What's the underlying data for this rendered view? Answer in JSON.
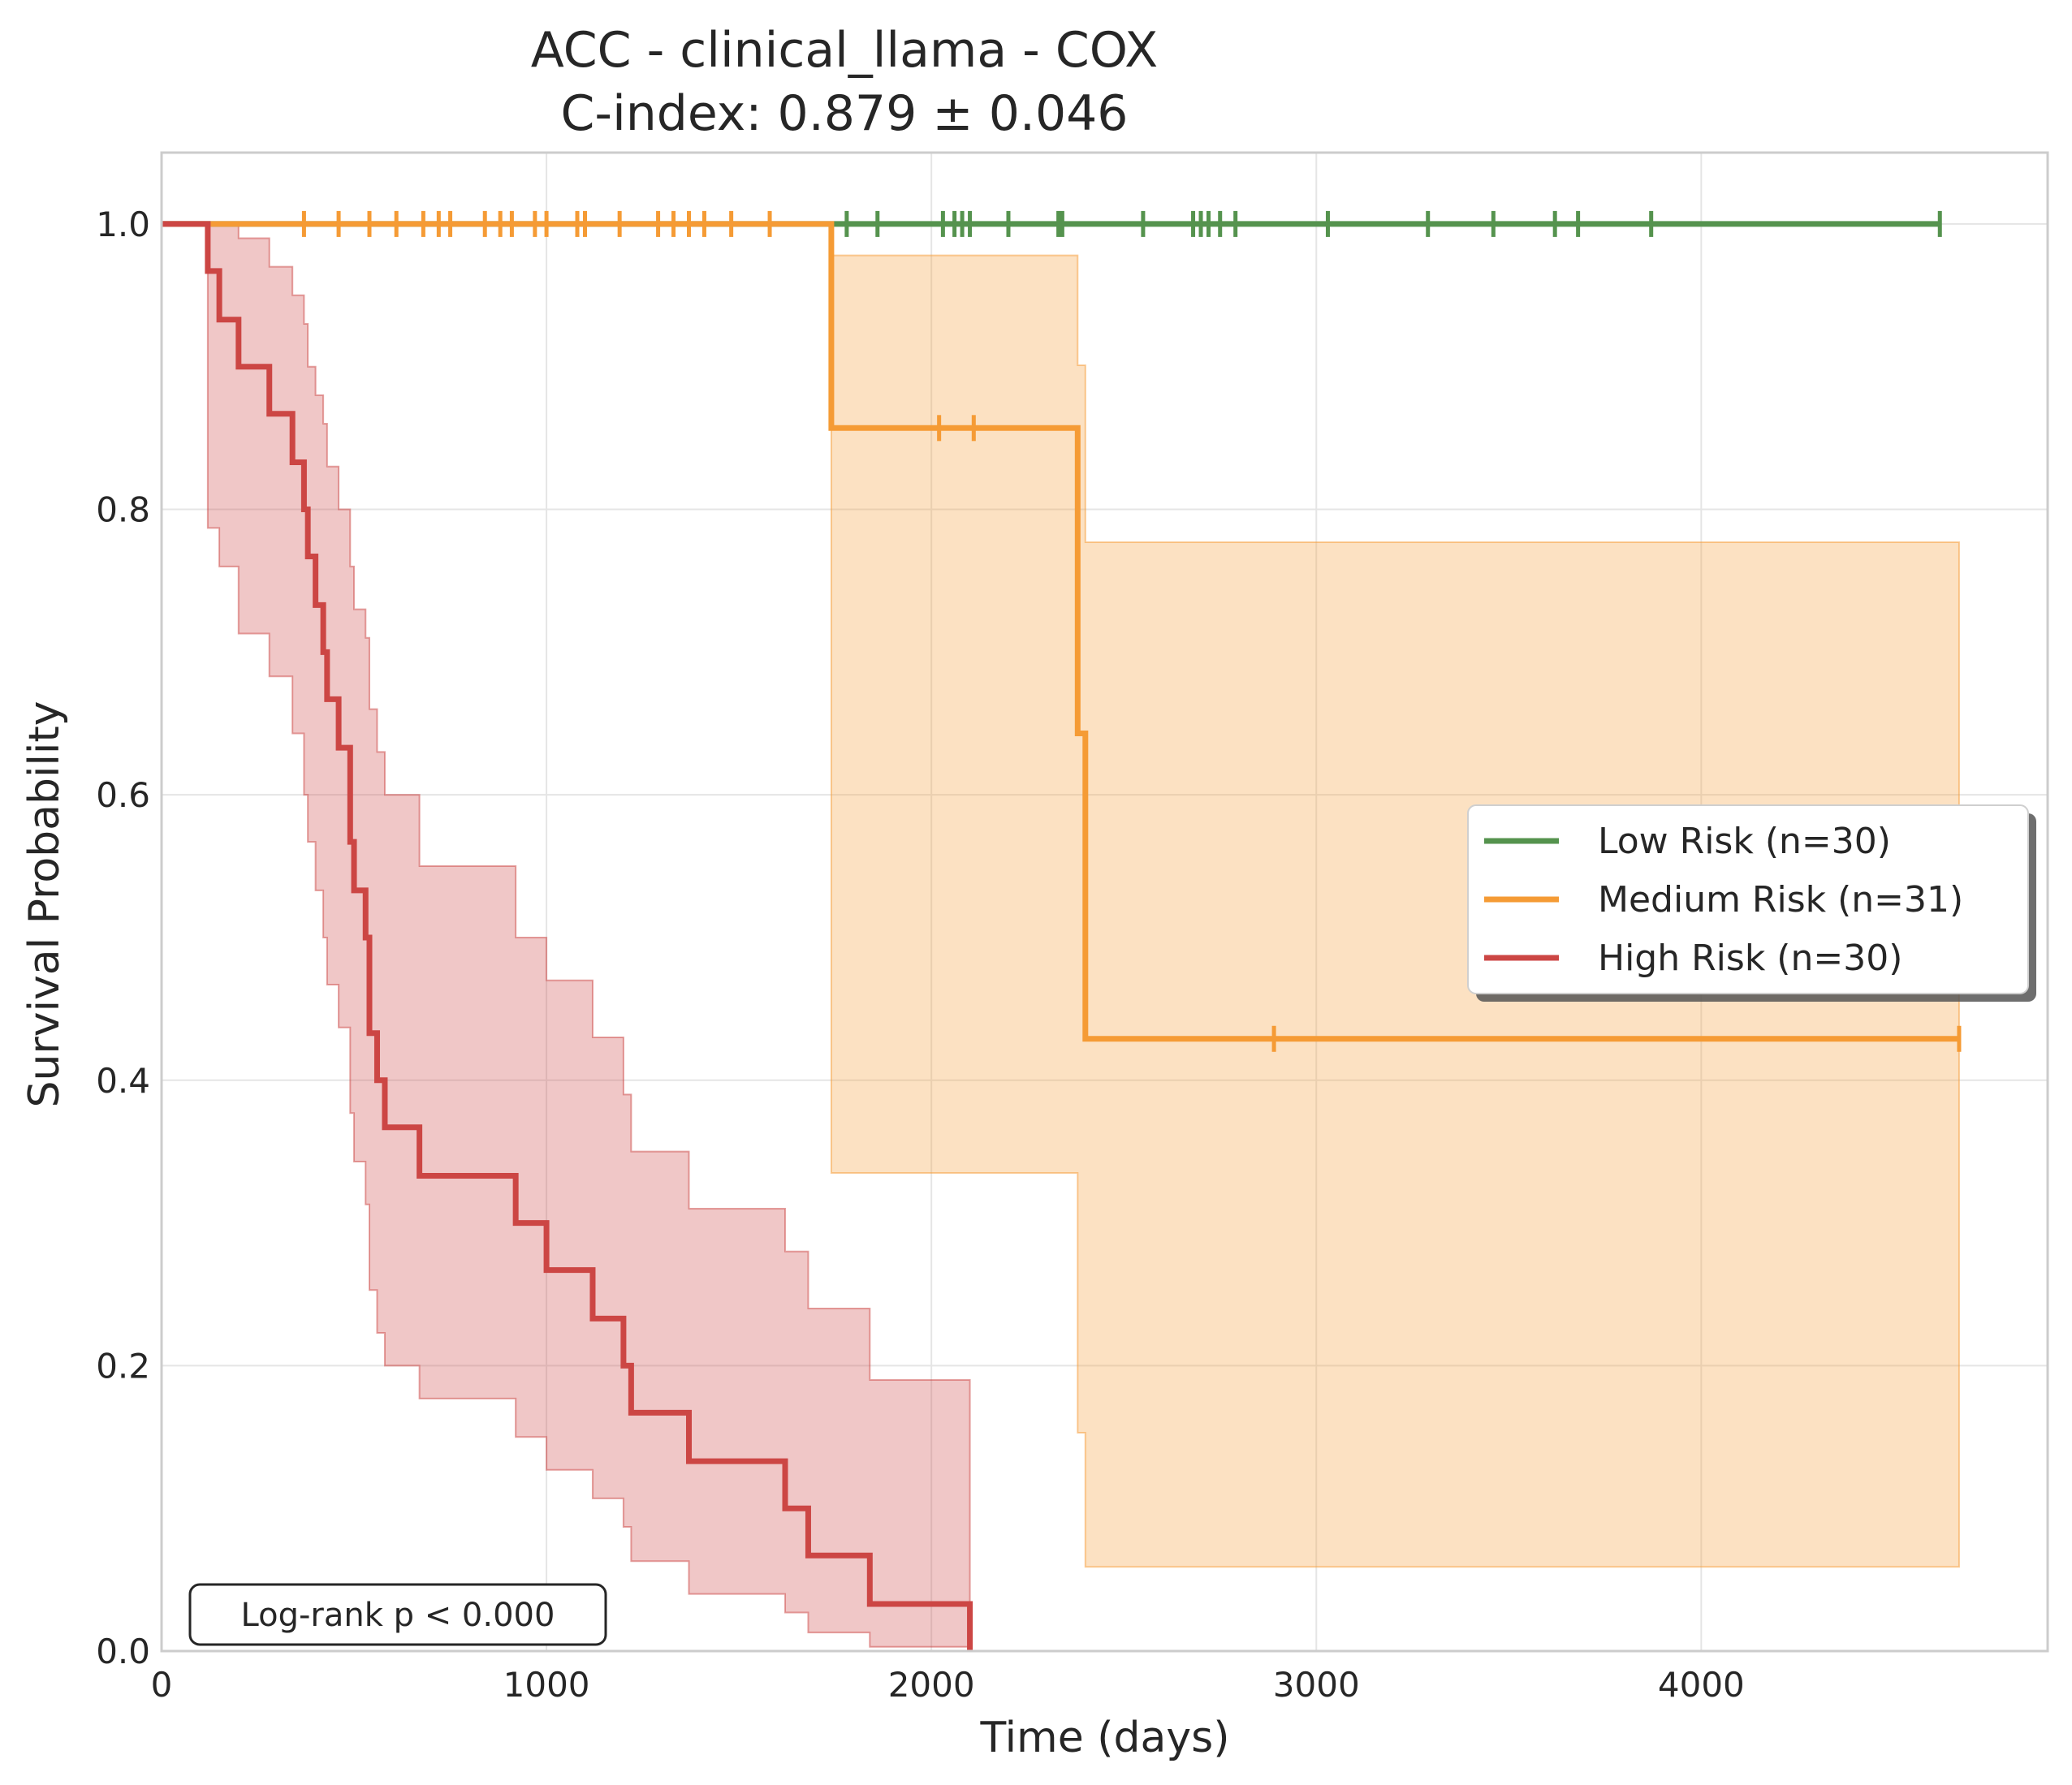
{
  "chart_data": {
    "type": "line",
    "title": "ACC - clinical_llama - COX",
    "subtitle": "C-index: 0.879 ± 0.046",
    "xlabel": "Time (days)",
    "ylabel": "Survival Probability",
    "xlim": [
      0,
      4900
    ],
    "ylim": [
      0,
      1.05
    ],
    "x_ticks": [
      0,
      1000,
      2000,
      3000,
      4000
    ],
    "x_tick_labels": [
      "0",
      "1000",
      "2000",
      "3000",
      "4000"
    ],
    "y_ticks": [
      0.0,
      0.2,
      0.4,
      0.6,
      0.8,
      1.0
    ],
    "y_tick_labels": [
      "0.0",
      "0.2",
      "0.4",
      "0.6",
      "0.8",
      "1.0"
    ],
    "grid": true,
    "legend_position": "center-right",
    "annotation": "Log-rank p < 0.000",
    "series": [
      {
        "name": "Low Risk (n=30)",
        "color": "#55934e",
        "steps": [
          [
            0,
            1.0
          ],
          [
            4620,
            1.0
          ]
        ],
        "ci_upper": [],
        "ci_lower": [],
        "censor_times": [
          1780,
          1860,
          2030,
          2060,
          2080,
          2100,
          2200,
          2330,
          2340,
          2550,
          2680,
          2700,
          2720,
          2750,
          2790,
          3030,
          3290,
          3460,
          3620,
          3680,
          3870,
          4620
        ]
      },
      {
        "name": "Medium Risk (n=31)",
        "color": "#f59b35",
        "steps": [
          [
            0,
            1.0
          ],
          [
            1740,
            0.857
          ],
          [
            2380,
            0.643
          ],
          [
            2400,
            0.429
          ],
          [
            4670,
            0.429
          ]
        ],
        "ci_upper": [
          [
            1740,
            0.978
          ],
          [
            2380,
            0.901
          ],
          [
            2400,
            0.777
          ],
          [
            4670,
            0.777
          ]
        ],
        "ci_lower": [
          [
            1740,
            0.335
          ],
          [
            2380,
            0.153
          ],
          [
            2400,
            0.059
          ],
          [
            4670,
            0.059
          ]
        ],
        "censor_times": [
          370,
          460,
          540,
          610,
          680,
          720,
          750,
          840,
          880,
          910,
          970,
          1000,
          1080,
          1100,
          1190,
          1290,
          1330,
          1370,
          1410,
          1480,
          1580,
          2020,
          2110,
          2890,
          4670
        ]
      },
      {
        "name": "High Risk (n=30)",
        "color": "#cc4644",
        "steps": [
          [
            0,
            1.0
          ],
          [
            120,
            0.967
          ],
          [
            150,
            0.933
          ],
          [
            200,
            0.9
          ],
          [
            280,
            0.867
          ],
          [
            340,
            0.833
          ],
          [
            370,
            0.8
          ],
          [
            380,
            0.767
          ],
          [
            400,
            0.733
          ],
          [
            420,
            0.7
          ],
          [
            430,
            0.667
          ],
          [
            460,
            0.633
          ],
          [
            490,
            0.567
          ],
          [
            500,
            0.533
          ],
          [
            530,
            0.5
          ],
          [
            540,
            0.433
          ],
          [
            560,
            0.4
          ],
          [
            580,
            0.367
          ],
          [
            670,
            0.333
          ],
          [
            920,
            0.3
          ],
          [
            1000,
            0.267
          ],
          [
            1120,
            0.233
          ],
          [
            1200,
            0.2
          ],
          [
            1220,
            0.167
          ],
          [
            1370,
            0.133
          ],
          [
            1620,
            0.1
          ],
          [
            1680,
            0.067
          ],
          [
            1840,
            0.033
          ],
          [
            2100,
            0.0
          ]
        ],
        "ci_upper": [
          [
            0,
            1.0
          ],
          [
            120,
            1.0
          ],
          [
            150,
            1.0
          ],
          [
            200,
            0.99
          ],
          [
            280,
            0.97
          ],
          [
            340,
            0.95
          ],
          [
            370,
            0.93
          ],
          [
            380,
            0.9
          ],
          [
            400,
            0.88
          ],
          [
            420,
            0.86
          ],
          [
            430,
            0.83
          ],
          [
            460,
            0.8
          ],
          [
            490,
            0.76
          ],
          [
            500,
            0.73
          ],
          [
            530,
            0.71
          ],
          [
            540,
            0.66
          ],
          [
            560,
            0.63
          ],
          [
            580,
            0.6
          ],
          [
            670,
            0.55
          ],
          [
            920,
            0.5
          ],
          [
            1000,
            0.47
          ],
          [
            1120,
            0.43
          ],
          [
            1200,
            0.39
          ],
          [
            1220,
            0.35
          ],
          [
            1370,
            0.31
          ],
          [
            1620,
            0.28
          ],
          [
            1680,
            0.24
          ],
          [
            1840,
            0.19
          ],
          [
            2100,
            0.145
          ]
        ],
        "ci_lower": [
          [
            0,
            1.0
          ],
          [
            120,
            0.787
          ],
          [
            150,
            0.76
          ],
          [
            200,
            0.713
          ],
          [
            280,
            0.683
          ],
          [
            340,
            0.643
          ],
          [
            370,
            0.6
          ],
          [
            380,
            0.567
          ],
          [
            400,
            0.533
          ],
          [
            420,
            0.5
          ],
          [
            430,
            0.467
          ],
          [
            460,
            0.437
          ],
          [
            490,
            0.377
          ],
          [
            500,
            0.343
          ],
          [
            530,
            0.313
          ],
          [
            540,
            0.253
          ],
          [
            560,
            0.223
          ],
          [
            580,
            0.2
          ],
          [
            670,
            0.177
          ],
          [
            920,
            0.15
          ],
          [
            1000,
            0.127
          ],
          [
            1120,
            0.107
          ],
          [
            1200,
            0.087
          ],
          [
            1220,
            0.063
          ],
          [
            1370,
            0.04
          ],
          [
            1620,
            0.027
          ],
          [
            1680,
            0.013
          ],
          [
            1840,
            0.003
          ],
          [
            2100,
            0.0
          ]
        ],
        "censor_times": []
      }
    ]
  }
}
